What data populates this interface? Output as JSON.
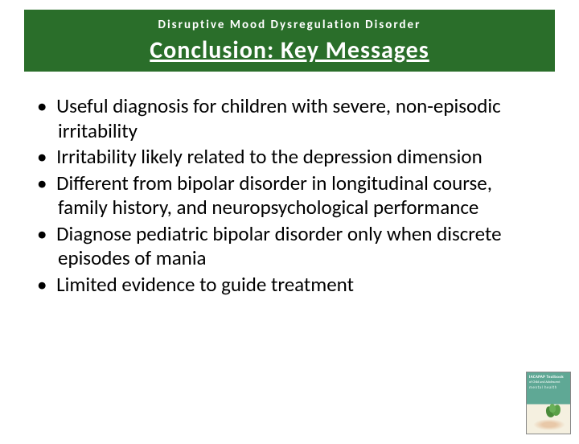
{
  "header": {
    "subtitle": "Disruptive Mood Dysregulation Disorder",
    "title": "Conclusion: Key Messages",
    "bg_color": "#2a6e2a",
    "text_color": "#ffffff"
  },
  "bullets": [
    "Useful diagnosis for children with severe, non-episodic irritability",
    "Irritability likely related to the depression dimension",
    "Different from bipolar disorder in longitudinal course, family history, and neuropsychological performance",
    "Diagnose pediatric bipolar disorder only when discrete episodes of mania",
    "Limited evidence to guide treatment"
  ],
  "thumbnail": {
    "line1": "IACAPAP Textbook",
    "line2": "of Child and Adolescent",
    "line3": "mental health"
  },
  "style": {
    "body_font_size": 25,
    "title_font_size": 30,
    "subtitle_font_size": 15,
    "body_color": "#000000",
    "page_bg": "#ffffff"
  }
}
